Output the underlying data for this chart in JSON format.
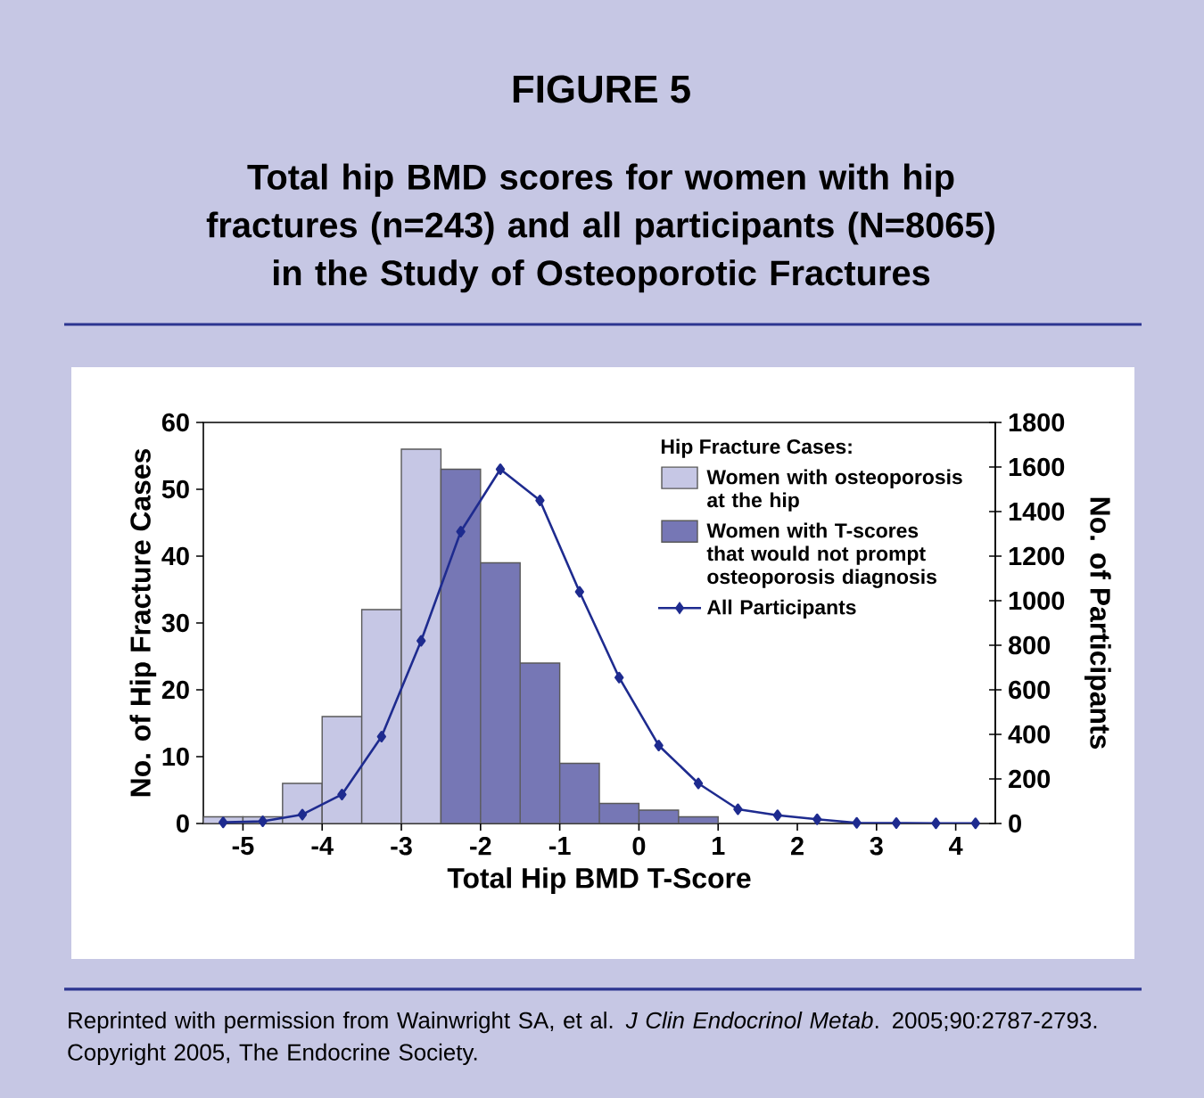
{
  "chart_data": {
    "type": "histogram",
    "title": "FIGURE 5",
    "subtitle": "Total hip BMD scores for women with hip fractures (n=243) and all participants (N=8065) in the Study of Osteoporotic Fractures",
    "xlabel": "Total Hip BMD T-Score",
    "ylabel": "No. of Hip Fracture Cases",
    "y2label": "No. of Participants",
    "legend_title": "Hip Fracture Cases:",
    "legend": "top right",
    "marker": "diamond",
    "annotations": [
      "Reprinted with permission from Wainwright SA, et al. *J Clin Endocrinol Metab*. 2005;90:2787-2793. Copyright 2005, The Endocrine Society."
    ],
    "xlim": [
      -5.5,
      4.5
    ],
    "xticks": [
      -5,
      -4,
      -3,
      -2,
      -1,
      0,
      1,
      2,
      3,
      4
    ],
    "ylim": [
      0,
      60
    ],
    "yticks": [
      0,
      10,
      20,
      30,
      40,
      50,
      60
    ],
    "y2lim": [
      0,
      1800
    ],
    "y2ticks": [
      0,
      200,
      400,
      600,
      800,
      1000,
      1200,
      1400,
      1600,
      1800
    ],
    "series": [
      {
        "name": "Women with osteoporosis at the hip",
        "color": "#c6c7e5",
        "bins": [
          -5.5,
          -5,
          -4.5,
          -4,
          -3.5,
          -3,
          -2.5
        ],
        "values": [
          1,
          1,
          6,
          16,
          32,
          56
        ]
      },
      {
        "name": "Women with T-scores that would not prompt osteoporosis diagnosis",
        "color": "#7677b5",
        "bins": [
          -2.5,
          -2,
          -1.5,
          -1,
          -0.5,
          0,
          0.5,
          1
        ],
        "values": [
          53,
          39,
          24,
          9,
          3,
          2,
          1
        ]
      },
      {
        "name": "All Participants",
        "type": "line",
        "axis": "y2",
        "color": "#1e2b8f",
        "x": [
          -5.25,
          -4.75,
          -4.25,
          -3.75,
          -3.25,
          -2.75,
          -2.25,
          -1.75,
          -1.25,
          -0.75,
          -0.25,
          0.25,
          0.75,
          1.25,
          1.75,
          2.25,
          2.75,
          3.25,
          3.75,
          4.25
        ],
        "values": [
          5,
          10,
          40,
          130,
          390,
          820,
          1310,
          1590,
          1450,
          1040,
          655,
          350,
          180,
          64,
          37,
          19,
          3,
          2,
          1,
          1
        ]
      }
    ]
  }
}
